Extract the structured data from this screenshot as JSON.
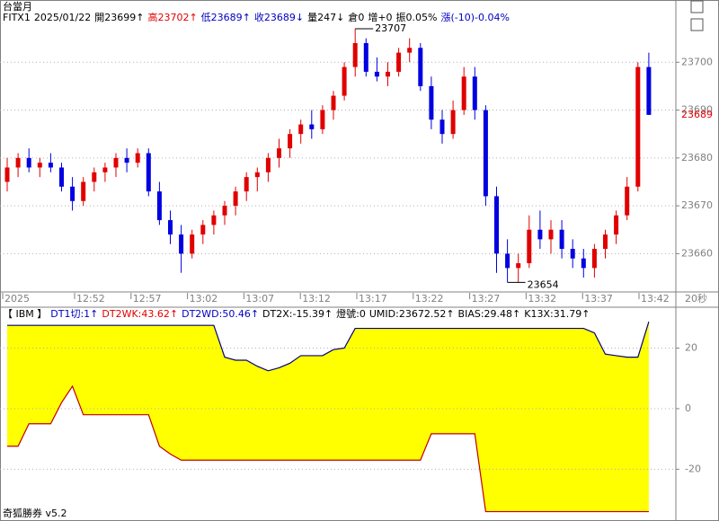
{
  "panel_title": "台當月",
  "info": [
    {
      "text": "FITX1",
      "color": "#000000"
    },
    {
      "text": "2025/01/22",
      "color": "#000000"
    },
    {
      "text": "開23699↑",
      "color": "#000000"
    },
    {
      "text": "高23702↑",
      "color": "#e00000"
    },
    {
      "text": "低23689↑",
      "color": "#0000c0"
    },
    {
      "text": "收23689↓",
      "color": "#0000c0"
    },
    {
      "text": "量247↓",
      "color": "#000000"
    },
    {
      "text": "倉0",
      "color": "#000000"
    },
    {
      "text": "增+0",
      "color": "#000000"
    },
    {
      "text": "振0.05%",
      "color": "#000000"
    },
    {
      "text": "漲(-10)-0.04%",
      "color": "#0000c0"
    }
  ],
  "chart_data": [
    {
      "type": "candlestick",
      "up_color": "#e00000",
      "down_color": "#0000e0",
      "grid": true,
      "ylim": [
        23652,
        23713
      ],
      "yticks": [
        23660,
        23670,
        23680,
        23690,
        23700
      ],
      "x_labels": [
        "2025",
        "12:52",
        "12:57",
        "13:02",
        "13:07",
        "13:12",
        "13:17",
        "13:22",
        "13:27",
        "13:32",
        "13:37",
        "13:42"
      ],
      "interval_label": "20秒",
      "high_label": 23707,
      "low_label": 23654,
      "last_price": 23689,
      "candles": [
        [
          23675,
          23680,
          23673,
          23678
        ],
        [
          23678,
          23681,
          23676,
          23680
        ],
        [
          23680,
          23682,
          23677,
          23678
        ],
        [
          23678,
          23680,
          23676,
          23679
        ],
        [
          23679,
          23681,
          23677,
          23678
        ],
        [
          23678,
          23679,
          23673,
          23674
        ],
        [
          23674,
          23676,
          23669,
          23671
        ],
        [
          23671,
          23676,
          23670,
          23675
        ],
        [
          23675,
          23678,
          23673,
          23677
        ],
        [
          23677,
          23679,
          23675,
          23678
        ],
        [
          23678,
          23681,
          23676,
          23680
        ],
        [
          23680,
          23682,
          23677,
          23679
        ],
        [
          23679,
          23682,
          23678,
          23681
        ],
        [
          23681,
          23682,
          23672,
          23673
        ],
        [
          23673,
          23675,
          23666,
          23667
        ],
        [
          23667,
          23669,
          23662,
          23664
        ],
        [
          23664,
          23666,
          23656,
          23660
        ],
        [
          23660,
          23665,
          23659,
          23664
        ],
        [
          23664,
          23667,
          23662,
          23666
        ],
        [
          23666,
          23669,
          23664,
          23668
        ],
        [
          23668,
          23671,
          23666,
          23670
        ],
        [
          23670,
          23674,
          23668,
          23673
        ],
        [
          23673,
          23677,
          23671,
          23676
        ],
        [
          23676,
          23678,
          23673,
          23677
        ],
        [
          23677,
          23681,
          23675,
          23680
        ],
        [
          23680,
          23684,
          23678,
          23682
        ],
        [
          23682,
          23686,
          23680,
          23685
        ],
        [
          23685,
          23688,
          23683,
          23687
        ],
        [
          23687,
          23690,
          23684,
          23686
        ],
        [
          23686,
          23691,
          23685,
          23690
        ],
        [
          23690,
          23694,
          23688,
          23693
        ],
        [
          23693,
          23700,
          23692,
          23699
        ],
        [
          23699,
          23707,
          23697,
          23704
        ],
        [
          23704,
          23705,
          23697,
          23698
        ],
        [
          23698,
          23701,
          23696,
          23697
        ],
        [
          23697,
          23700,
          23695,
          23698
        ],
        [
          23698,
          23703,
          23697,
          23702
        ],
        [
          23702,
          23705,
          23700,
          23703
        ],
        [
          23703,
          23704,
          23694,
          23695
        ],
        [
          23695,
          23697,
          23686,
          23688
        ],
        [
          23688,
          23690,
          23683,
          23685
        ],
        [
          23685,
          23692,
          23684,
          23690
        ],
        [
          23690,
          23699,
          23689,
          23697
        ],
        [
          23697,
          23699,
          23688,
          23690
        ],
        [
          23690,
          23691,
          23670,
          23672
        ],
        [
          23672,
          23674,
          23656,
          23660
        ],
        [
          23660,
          23663,
          23654,
          23657
        ],
        [
          23657,
          23660,
          23654,
          23658
        ],
        [
          23658,
          23668,
          23657,
          23665
        ],
        [
          23665,
          23669,
          23661,
          23663
        ],
        [
          23663,
          23667,
          23660,
          23665
        ],
        [
          23665,
          23667,
          23659,
          23661
        ],
        [
          23661,
          23663,
          23657,
          23659
        ],
        [
          23659,
          23661,
          23655,
          23657
        ],
        [
          23657,
          23662,
          23655,
          23661
        ],
        [
          23661,
          23665,
          23659,
          23664
        ],
        [
          23664,
          23669,
          23662,
          23668
        ],
        [
          23668,
          23676,
          23667,
          23674
        ],
        [
          23674,
          23700,
          23673,
          23699
        ],
        [
          23699,
          23702,
          23689,
          23689
        ]
      ]
    },
    {
      "type": "band",
      "header": [
        {
          "text": "【 IBM 】",
          "color": "#000000"
        },
        {
          "text": "DT1切:1↑",
          "color": "#0000c0"
        },
        {
          "text": "DT2WK:43.62↑",
          "color": "#e00000"
        },
        {
          "text": "DT2WD:50.46↑",
          "color": "#0000c0"
        },
        {
          "text": "DT2X:-15.39↑",
          "color": "#000000"
        },
        {
          "text": "燈號:0",
          "color": "#000000"
        },
        {
          "text": "UMID:23672.52↑",
          "color": "#000000"
        },
        {
          "text": "BIAS:29.48↑",
          "color": "#000000"
        },
        {
          "text": "K13X:31.79↑",
          "color": "#000000"
        }
      ],
      "fill": "#ffff00",
      "grid": true,
      "ylim": [
        -36.5,
        32.6
      ],
      "yticks": [
        -20,
        0,
        20
      ],
      "series": [
        {
          "color": "#000080",
          "values": [
            27.5,
            27.5,
            27.5,
            27.5,
            27.5,
            27.5,
            27.5,
            27.5,
            27.5,
            27.5,
            27.5,
            27.5,
            27.5,
            27.5,
            27.5,
            27.5,
            27.5,
            27.5,
            27.5,
            27.5,
            17,
            16,
            16,
            14,
            12.5,
            13.5,
            15,
            17.5,
            17.5,
            17.5,
            19.5,
            20,
            26.5,
            26.5,
            26.5,
            26.5,
            26.5,
            26.5,
            26.5,
            26.5,
            26.5,
            26.5,
            26.5,
            26.5,
            26.5,
            26.5,
            26.5,
            26.5,
            26.5,
            26.5,
            26.5,
            26.5,
            26.5,
            26.5,
            25,
            18,
            17.5,
            17,
            17,
            28.7
          ]
        },
        {
          "color": "#c00000",
          "values": [
            -12.4,
            -12.4,
            -5,
            -5,
            -5,
            2,
            7.4,
            -2,
            -2,
            -2,
            -2,
            -2,
            -2,
            -2,
            -12.4,
            -15,
            -17,
            -17,
            -17,
            -17,
            -17,
            -17,
            -17,
            -17,
            -17,
            -17,
            -17,
            -17,
            -17,
            -17,
            -17,
            -17,
            -17,
            -17,
            -17,
            -17,
            -17,
            -17,
            -17,
            -8.3,
            -8.3,
            -8.3,
            -8.3,
            -8.3,
            -34,
            -34,
            -34,
            -34,
            -34,
            -34,
            -34,
            -34,
            -34,
            -34,
            -34,
            -34,
            -34,
            -34,
            -34,
            -34
          ]
        }
      ]
    }
  ],
  "footer": "奇狐勝券 v5.2"
}
